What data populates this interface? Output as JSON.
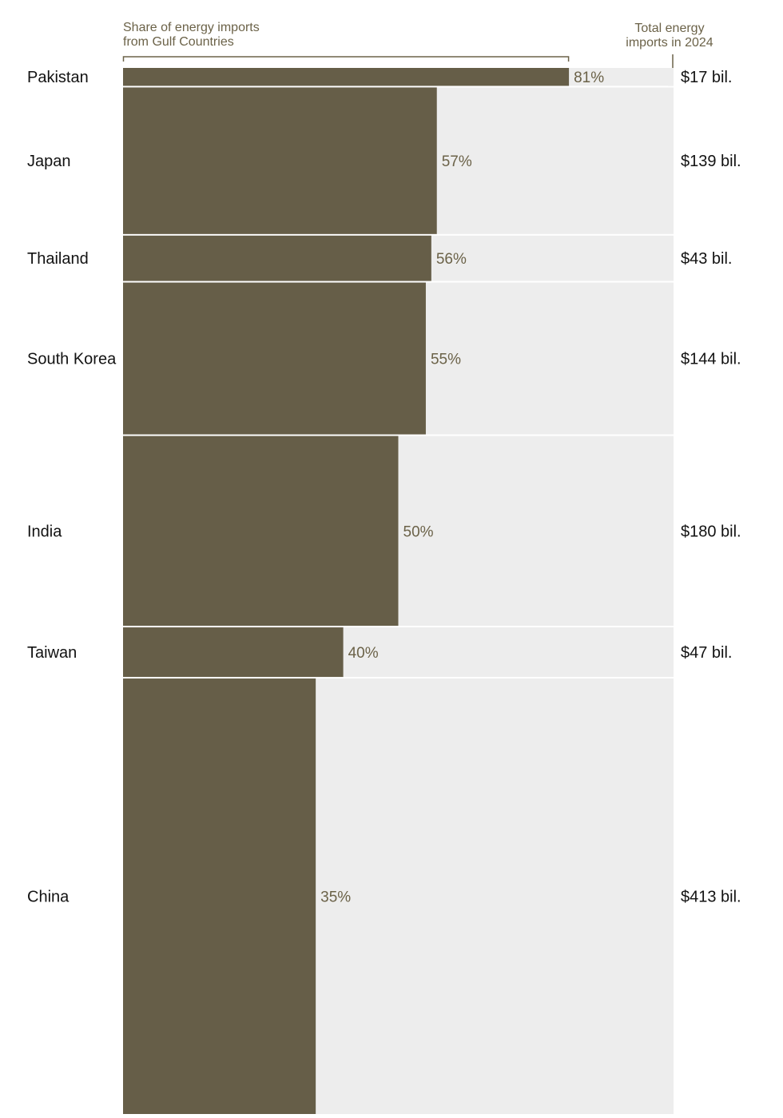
{
  "chart_data": {
    "type": "bar",
    "header": {
      "share_title": [
        "Share of energy imports",
        "from Gulf Countries"
      ],
      "total_title": [
        "Total energy",
        "imports in 2024"
      ]
    },
    "categories": [
      "Pakistan",
      "Japan",
      "Thailand",
      "South Korea",
      "India",
      "Taiwan",
      "China"
    ],
    "series": [
      {
        "values": [
          81,
          57,
          56,
          55,
          50,
          40,
          35
        ],
        "value_labels": [
          "81%",
          "57%",
          "56%",
          "55%",
          "50%",
          "40%",
          "35%"
        ]
      }
    ],
    "totals_bil_usd": [
      17,
      139,
      43,
      144,
      180,
      47,
      413
    ],
    "total_labels": [
      "$17 bil.",
      "$139 bil.",
      "$43 bil.",
      "$144 bil.",
      "$180 bil.",
      "$47 bil.",
      "$413 bil."
    ],
    "xlim": [
      0,
      100
    ],
    "colors": {
      "bar": "#665e48",
      "background": "#ededed",
      "label": "#6b6248",
      "text": "#121212"
    }
  }
}
